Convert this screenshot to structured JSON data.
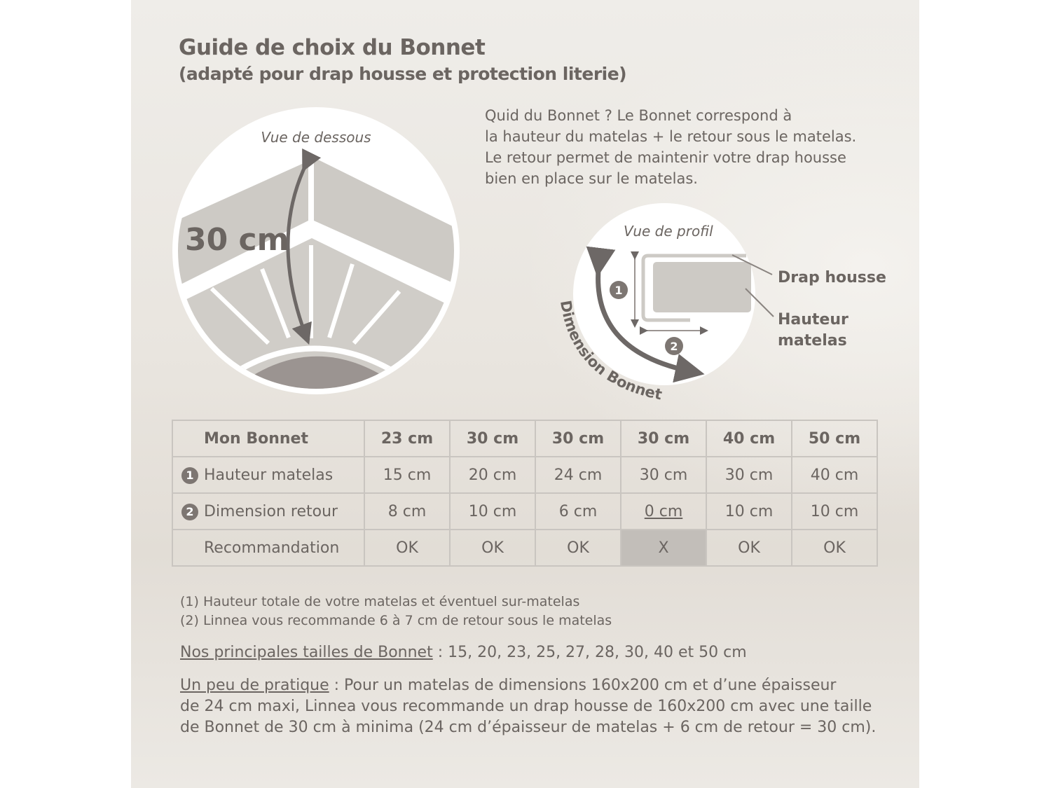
{
  "title": "Guide de choix du Bonnet",
  "subtitle": "(adapté pour drap housse et protection literie)",
  "intro": [
    "Quid du Bonnet ? Le Bonnet correspond à",
    "la hauteur du matelas + le retour sous le matelas.",
    "Le retour permet de maintenir votre drap housse",
    "bien en place sur le matelas."
  ],
  "diagram_bottom": {
    "caption": "Vue de dessous",
    "measure": "30 cm"
  },
  "diagram_profile": {
    "caption": "Vue de profil",
    "arc_label": "Dimension Bonnet",
    "label_sheet": "Drap housse",
    "label_height_1": "Hauteur",
    "label_height_2": "matelas",
    "badge_1": "1",
    "badge_2": "2"
  },
  "colors": {
    "text": "#6b6561",
    "shape": "#cdcac5",
    "dark_shape": "#9b9491",
    "arrow": "#6d6866",
    "highlight": "#c2beb9"
  },
  "table": {
    "header": "Mon Bonnet",
    "sizes": [
      "23 cm",
      "30 cm",
      "30 cm",
      "30 cm",
      "40 cm",
      "50 cm"
    ],
    "rows": [
      {
        "badge": "1",
        "label": "Hauteur matelas",
        "values": [
          "15 cm",
          "20 cm",
          "24 cm",
          "30 cm",
          "30 cm",
          "40 cm"
        ]
      },
      {
        "badge": "2",
        "label": "Dimension retour",
        "values": [
          "8 cm",
          "10 cm",
          "6 cm",
          "0 cm",
          "10 cm",
          "10 cm"
        ]
      },
      {
        "badge": "",
        "label": "Recommandation",
        "values": [
          "OK",
          "OK",
          "OK",
          "X",
          "OK",
          "OK"
        ]
      }
    ]
  },
  "notes": [
    {
      "mark": "(1)",
      "text": "Hauteur totale de votre matelas et éventuel sur-matelas"
    },
    {
      "mark": "(2)",
      "text": "Linnea vous recommande 6 à 7 cm de retour sous le matelas"
    }
  ],
  "sizes_line": {
    "label": "Nos principales tailles de Bonnet",
    "text": " : 15, 20, 23, 25, 27, 28, 30, 40 et 50 cm"
  },
  "practice": {
    "label": "Un peu de pratique",
    "line1": " : Pour un matelas de dimensions 160x200 cm et d’une épaisseur",
    "line2": "de 24 cm maxi, Linnea vous recommande un drap housse de 160x200 cm avec une taille",
    "line3": "de Bonnet de 30 cm à minima (24 cm d’épaisseur de matelas + 6 cm de retour = 30 cm)."
  }
}
